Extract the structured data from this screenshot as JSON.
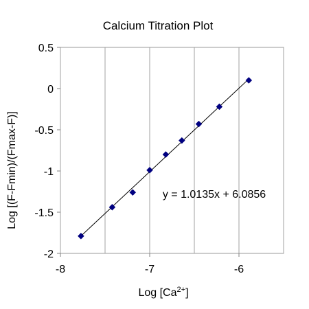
{
  "chart_data": {
    "type": "scatter",
    "title": "Calcium Titration Plot",
    "xlabel": {
      "base": "Log [Ca",
      "superscript": "2+",
      "suffix": "]"
    },
    "ylabel": "Log [(F-Fmin)/(Fmax-F)]",
    "xlim": [
      -8,
      -5.5
    ],
    "ylim": [
      -2,
      0.5
    ],
    "xticks": [
      -8,
      -7,
      -6
    ],
    "xtick_labels": [
      "-8",
      "-7",
      "-6"
    ],
    "yticks": [
      0.5,
      0,
      -0.5,
      -1,
      -1.5,
      -2
    ],
    "ytick_labels": [
      "0.5",
      "0",
      "-0.5",
      "-1",
      "-1.5",
      "-2"
    ],
    "grid": {
      "vertical": true,
      "horizontal": false
    },
    "legend": "none",
    "marker": {
      "shape": "diamond",
      "color": "#000080"
    },
    "series": [
      {
        "x": [
          -7.77,
          -7.42,
          -7.19,
          -7.0,
          -6.82,
          -6.64,
          -6.45,
          -6.22,
          -5.89
        ],
        "y": [
          -1.79,
          -1.44,
          -1.26,
          -0.99,
          -0.8,
          -0.63,
          -0.43,
          -0.22,
          0.1
        ]
      }
    ],
    "trendline": {
      "type": "linear",
      "slope": 1.0135,
      "intercept": 6.0856,
      "x_range": [
        -7.77,
        -5.89
      ],
      "equation_label": "y = 1.0135x + 6.0856"
    }
  }
}
